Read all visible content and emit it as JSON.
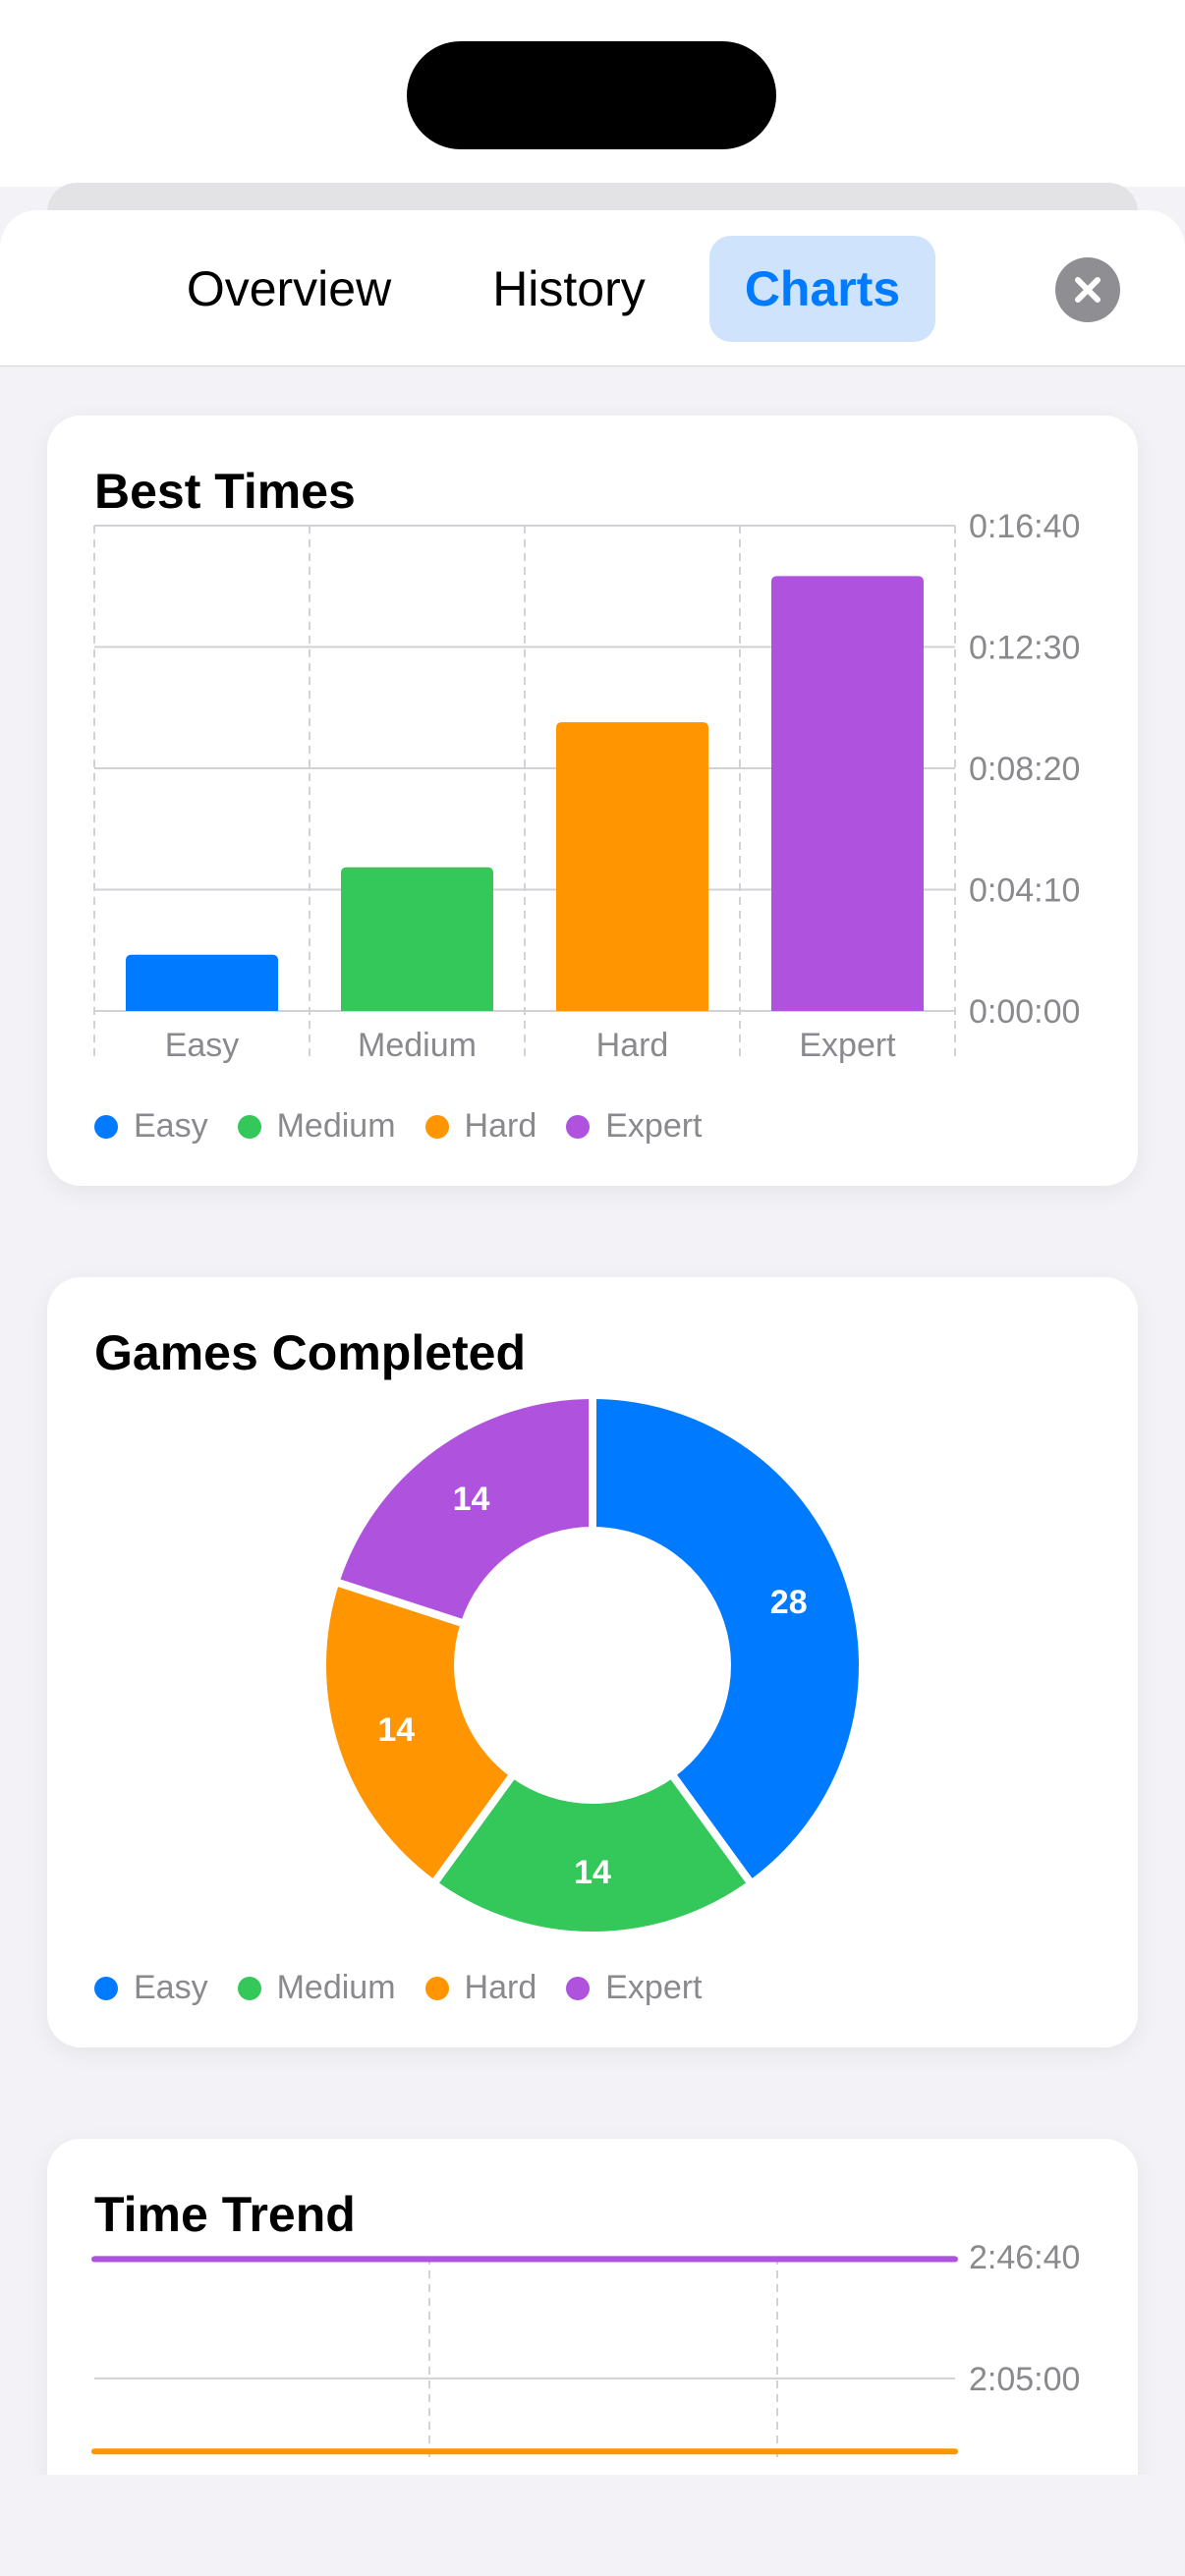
{
  "tabs": [
    {
      "label": "Overview",
      "active": false
    },
    {
      "label": "History",
      "active": false
    },
    {
      "label": "Charts",
      "active": true
    }
  ],
  "colors": {
    "accent": "#007aff",
    "accent_bg": "#cfe4fc",
    "easy": "#007aff",
    "medium": "#34c759",
    "hard": "#ff9500",
    "expert": "#af52de",
    "axis_text": "#8a8a8e",
    "gridline": "#d1d1d6"
  },
  "close_icon": "xmark-circle-icon",
  "chart_data": [
    {
      "type": "bar",
      "title": "Best Times",
      "categories": [
        "Easy",
        "Medium",
        "Hard",
        "Expert"
      ],
      "values": [
        116,
        296,
        595,
        896
      ],
      "value_unit": "seconds",
      "y_tick_values": [
        0,
        250,
        500,
        750,
        1000
      ],
      "y_tick_labels": [
        "0:00:00",
        "0:04:10",
        "0:08:20",
        "0:12:30",
        "0:16:40"
      ],
      "ylim": [
        0,
        1000
      ],
      "y_axis_side": "right",
      "grid": true,
      "legend": [
        "Easy",
        "Medium",
        "Hard",
        "Expert"
      ],
      "legend_position": "bottom-left"
    },
    {
      "type": "pie",
      "title": "Games Completed",
      "categories": [
        "Easy",
        "Medium",
        "Hard",
        "Expert"
      ],
      "values": [
        28,
        14,
        14,
        14
      ],
      "labels": [
        "28",
        "14",
        "14",
        "14"
      ],
      "donut": true,
      "legend": [
        "Easy",
        "Medium",
        "Hard",
        "Expert"
      ],
      "legend_position": "bottom-left"
    },
    {
      "type": "line",
      "title": "Time Trend",
      "y_tick_values": [
        7500,
        10000
      ],
      "y_tick_labels": [
        "2:05:00",
        "2:46:40"
      ],
      "y_axis_side": "right",
      "grid": true,
      "series": [
        {
          "color": "#af52de",
          "values": [
            9950,
            9950
          ]
        },
        {
          "color": "#ff9500",
          "values": [
            6000,
            6000
          ]
        }
      ]
    }
  ]
}
